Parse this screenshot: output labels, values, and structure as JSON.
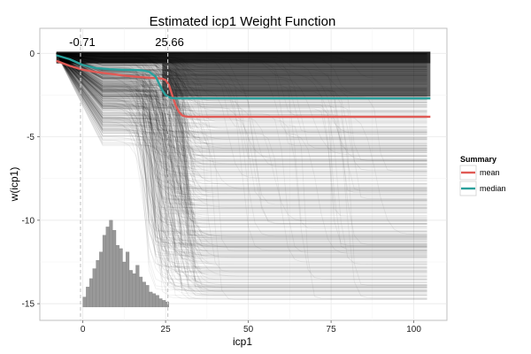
{
  "chart_data": {
    "type": "line",
    "title": "Estimated icp1 Weight Function",
    "xlabel": "icp1",
    "ylabel": "w(icp1)",
    "xlim": [
      -13,
      110
    ],
    "ylim": [
      -16,
      1.5
    ],
    "x_ticks": [
      0,
      25,
      50,
      75,
      100
    ],
    "x_tick_labels": [
      "0",
      "25",
      "50",
      "75",
      "100"
    ],
    "y_ticks": [
      0,
      -5,
      -10,
      -15
    ],
    "y_tick_labels": [
      "0",
      "-5",
      "-10",
      "-15"
    ],
    "grid": true,
    "background": "#ffffff",
    "vlines": [
      {
        "x": -0.71,
        "label": "-0.71"
      },
      {
        "x": 25.66,
        "label": "25.66"
      }
    ],
    "legend": {
      "title": "Summary",
      "placement": "right",
      "entries": [
        {
          "name": "mean",
          "color": "#e05a55"
        },
        {
          "name": "median",
          "color": "#2aa09c"
        }
      ]
    },
    "series": [
      {
        "name": "mean",
        "color": "#e05a55",
        "x": [
          -8,
          -4,
          0,
          4,
          8,
          12,
          16,
          20,
          22,
          24,
          25,
          26,
          27,
          28,
          29,
          30,
          31,
          32,
          34,
          40,
          50,
          60,
          70,
          80,
          90,
          100,
          105
        ],
        "y": [
          -0.45,
          -0.75,
          -0.98,
          -1.12,
          -1.22,
          -1.32,
          -1.4,
          -1.46,
          -1.48,
          -1.52,
          -1.6,
          -1.9,
          -2.5,
          -3.1,
          -3.5,
          -3.72,
          -3.78,
          -3.8,
          -3.8,
          -3.8,
          -3.8,
          -3.8,
          -3.8,
          -3.8,
          -3.8,
          -3.8,
          -3.8
        ]
      },
      {
        "name": "median",
        "color": "#2aa09c",
        "x": [
          -8,
          -4,
          0,
          4,
          8,
          12,
          16,
          18,
          20,
          22,
          23,
          24,
          25,
          26,
          27,
          28,
          30,
          35,
          45,
          60,
          80,
          100,
          105
        ],
        "y": [
          -0.12,
          -0.35,
          -0.7,
          -0.88,
          -0.95,
          -0.98,
          -1.0,
          -1.02,
          -1.1,
          -1.4,
          -1.8,
          -2.2,
          -2.5,
          -2.62,
          -2.68,
          -2.7,
          -2.7,
          -2.7,
          -2.7,
          -2.7,
          -2.7,
          -2.7,
          -2.7
        ]
      }
    ],
    "histogram": {
      "bin_width": 1,
      "bin_starts": [
        0,
        1,
        2,
        3,
        4,
        5,
        6,
        7,
        8,
        9,
        10,
        11,
        12,
        13,
        14,
        15,
        16,
        17,
        18,
        19,
        20,
        21,
        22,
        23,
        24,
        25
      ],
      "heights": [
        0.6,
        1.2,
        1.7,
        2.3,
        2.8,
        3.3,
        4.3,
        4.8,
        5.2,
        4.6,
        3.7,
        3.5,
        2.7,
        3.3,
        2.2,
        2.0,
        2.5,
        1.8,
        1.5,
        1.3,
        0.9,
        0.8,
        0.7,
        0.5,
        0.4,
        0.3
      ],
      "color": "#999999",
      "baseline": -15.2,
      "scale": 1
    }
  }
}
